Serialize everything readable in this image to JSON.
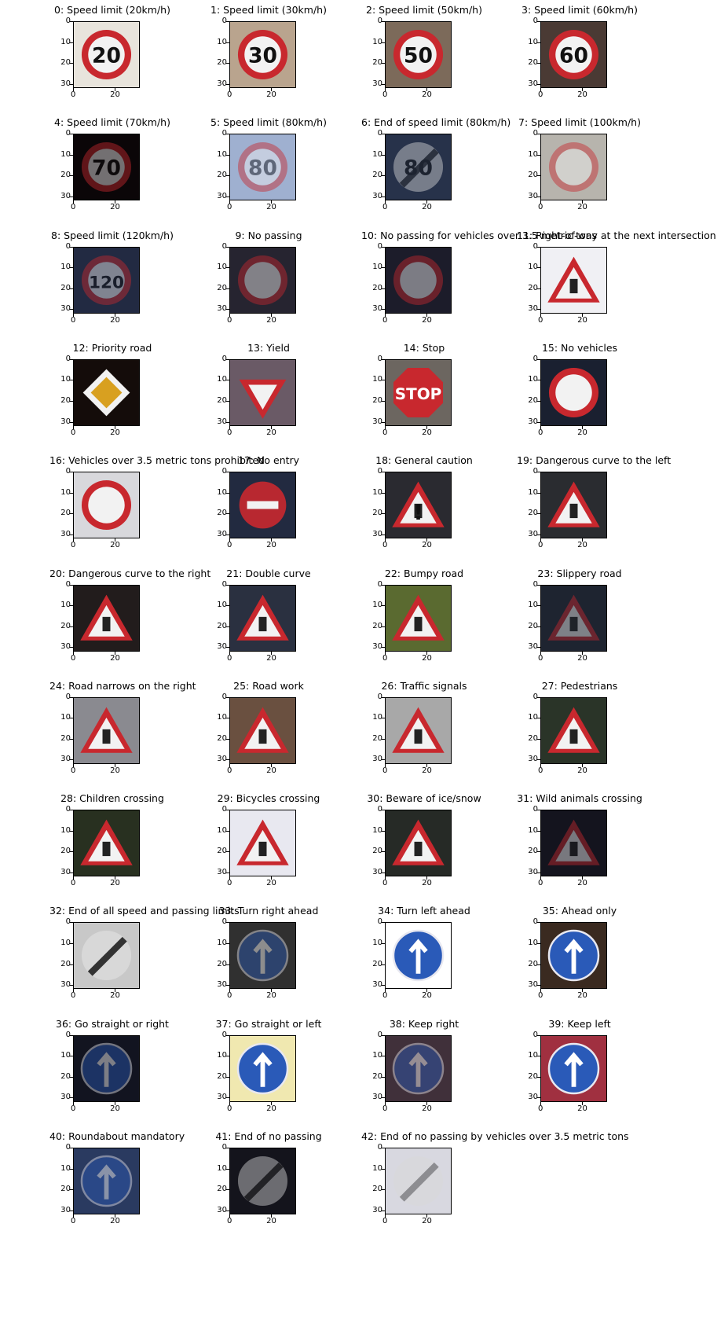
{
  "figure": {
    "panels": [
      {
        "title": "0: Speed limit (20km/h)",
        "sign": {
          "shape": "circle-red",
          "bg": "#e8e4dc",
          "label": "20",
          "dark": false
        }
      },
      {
        "title": "1: Speed limit (30km/h)",
        "sign": {
          "shape": "circle-red",
          "bg": "#b9a48e",
          "label": "30",
          "dark": false
        }
      },
      {
        "title": "2: Speed limit (50km/h)",
        "sign": {
          "shape": "circle-red",
          "bg": "#7c6a5a",
          "label": "50",
          "dark": false
        }
      },
      {
        "title": "3: Speed limit (60km/h)",
        "sign": {
          "shape": "circle-red",
          "bg": "#4a3a34",
          "label": "60",
          "dark": false
        }
      },
      {
        "title": "4: Speed limit (70km/h)",
        "sign": {
          "shape": "circle-red",
          "bg": "#0b0608",
          "label": "70",
          "dark": true
        }
      },
      {
        "title": "5: Speed limit (80km/h)",
        "sign": {
          "shape": "circle-red",
          "bg": "#9fb0d0",
          "label": "80",
          "dark": true
        }
      },
      {
        "title": "6: End of speed limit (80km/h)",
        "sign": {
          "shape": "circle-end",
          "bg": "#27324a",
          "label": "80",
          "dark": true
        }
      },
      {
        "title": "7: Speed limit (100km/h)",
        "sign": {
          "shape": "circle-red",
          "bg": "#b7b4ad",
          "label": "",
          "dark": true
        }
      },
      {
        "title": "8: Speed limit (120km/h)",
        "sign": {
          "shape": "circle-red",
          "bg": "#222a42",
          "label": "120",
          "dark": true
        }
      },
      {
        "title": "9: No passing",
        "sign": {
          "shape": "circle-red",
          "bg": "#262430",
          "label": "",
          "dark": true
        }
      },
      {
        "title": "10: No passing for vehicles over 3.5 metric tons",
        "sign": {
          "shape": "circle-red",
          "bg": "#1c1c2a",
          "label": "",
          "dark": true
        }
      },
      {
        "title": "11: Right-of-way at the next intersection",
        "sign": {
          "shape": "triangle",
          "bg": "#f0f0f4",
          "label": "",
          "dark": false
        }
      },
      {
        "title": "12: Priority road",
        "sign": {
          "shape": "diamond",
          "bg": "#140c0a",
          "label": "",
          "dark": false
        }
      },
      {
        "title": "13: Yield",
        "sign": {
          "shape": "yield",
          "bg": "#6a5a66",
          "label": "",
          "dark": false
        }
      },
      {
        "title": "14: Stop",
        "sign": {
          "shape": "stop",
          "bg": "#6c6660",
          "label": "STOP",
          "dark": false
        }
      },
      {
        "title": "15: No vehicles",
        "sign": {
          "shape": "circle-red",
          "bg": "#1a2030",
          "label": "",
          "dark": false
        }
      },
      {
        "title": "16: Vehicles over 3.5 metric tons prohibited",
        "sign": {
          "shape": "circle-red",
          "bg": "#d8d8dc",
          "label": "",
          "dark": false
        }
      },
      {
        "title": "17: No entry",
        "sign": {
          "shape": "noentry",
          "bg": "#222a40",
          "label": "",
          "dark": false
        }
      },
      {
        "title": "18: General caution",
        "sign": {
          "shape": "triangle",
          "bg": "#2a2a30",
          "label": "!",
          "dark": false
        }
      },
      {
        "title": "19: Dangerous curve to the left",
        "sign": {
          "shape": "triangle",
          "bg": "#2a2c30",
          "label": "",
          "dark": false
        }
      },
      {
        "title": "20: Dangerous curve to the right",
        "sign": {
          "shape": "triangle",
          "bg": "#221c1c",
          "label": "",
          "dark": false
        }
      },
      {
        "title": "21: Double curve",
        "sign": {
          "shape": "triangle",
          "bg": "#2a3040",
          "label": "",
          "dark": false
        }
      },
      {
        "title": "22: Bumpy road",
        "sign": {
          "shape": "triangle",
          "bg": "#5a6a30",
          "label": "",
          "dark": false
        }
      },
      {
        "title": "23: Slippery road",
        "sign": {
          "shape": "triangle",
          "bg": "#1e2430",
          "label": "",
          "dark": true
        }
      },
      {
        "title": "24: Road narrows on the right",
        "sign": {
          "shape": "triangle",
          "bg": "#8a8a90",
          "label": "",
          "dark": false
        }
      },
      {
        "title": "25: Road work",
        "sign": {
          "shape": "triangle",
          "bg": "#6a5040",
          "label": "",
          "dark": false
        }
      },
      {
        "title": "26: Traffic signals",
        "sign": {
          "shape": "triangle",
          "bg": "#a8a8a8",
          "label": "",
          "dark": false
        }
      },
      {
        "title": "27: Pedestrians",
        "sign": {
          "shape": "triangle",
          "bg": "#2a3428",
          "label": "",
          "dark": false
        }
      },
      {
        "title": "28: Children crossing",
        "sign": {
          "shape": "triangle",
          "bg": "#283020",
          "label": "",
          "dark": false
        }
      },
      {
        "title": "29: Bicycles crossing",
        "sign": {
          "shape": "triangle",
          "bg": "#e8e8f0",
          "label": "",
          "dark": false
        }
      },
      {
        "title": "30: Beware of ice/snow",
        "sign": {
          "shape": "triangle",
          "bg": "#262a26",
          "label": "",
          "dark": false
        }
      },
      {
        "title": "31: Wild animals crossing",
        "sign": {
          "shape": "triangle",
          "bg": "#14141e",
          "label": "",
          "dark": true
        }
      },
      {
        "title": "32: End of all speed and passing limits",
        "sign": {
          "shape": "circle-end",
          "bg": "#c8c8c8",
          "label": "",
          "dark": false
        }
      },
      {
        "title": "33: Turn right ahead",
        "sign": {
          "shape": "circle-blue",
          "bg": "#303030",
          "label": "",
          "dark": true
        }
      },
      {
        "title": "34: Turn left ahead",
        "sign": {
          "shape": "circle-blue",
          "bg": "#ffffff",
          "label": "",
          "dark": false
        }
      },
      {
        "title": "35: Ahead only",
        "sign": {
          "shape": "circle-blue",
          "bg": "#3a2a20",
          "label": "",
          "dark": false
        }
      },
      {
        "title": "36: Go straight or right",
        "sign": {
          "shape": "circle-blue",
          "bg": "#121420",
          "label": "",
          "dark": true
        }
      },
      {
        "title": "37: Go straight or left",
        "sign": {
          "shape": "circle-blue",
          "bg": "#f0e8b0",
          "label": "",
          "dark": false
        }
      },
      {
        "title": "38: Keep right",
        "sign": {
          "shape": "circle-blue",
          "bg": "#40303a",
          "label": "",
          "dark": true
        }
      },
      {
        "title": "39: Keep left",
        "sign": {
          "shape": "circle-blue",
          "bg": "#a03040",
          "label": "",
          "dark": false
        }
      },
      {
        "title": "40: Roundabout mandatory",
        "sign": {
          "shape": "circle-blue",
          "bg": "#2a3a60",
          "label": "",
          "dark": true
        }
      },
      {
        "title": "41: End of no passing",
        "sign": {
          "shape": "circle-end",
          "bg": "#14141c",
          "label": "",
          "dark": true
        }
      },
      {
        "title": "42: End of no passing by vehicles over 3.5 metric tons",
        "sign": {
          "shape": "circle-end",
          "bg": "#d8d8e0",
          "label": "",
          "dark": true
        }
      }
    ]
  },
  "chart_data": {
    "type": "image-grid",
    "title": "",
    "xticks": [
      "0",
      "20"
    ],
    "yticks": [
      "0",
      "10",
      "20",
      "30"
    ],
    "xlim": [
      0,
      32
    ],
    "ylim": [
      32,
      0
    ],
    "grid": false,
    "categories": [
      "0: Speed limit (20km/h)",
      "1: Speed limit (30km/h)",
      "2: Speed limit (50km/h)",
      "3: Speed limit (60km/h)",
      "4: Speed limit (70km/h)",
      "5: Speed limit (80km/h)",
      "6: End of speed limit (80km/h)",
      "7: Speed limit (100km/h)",
      "8: Speed limit (120km/h)",
      "9: No passing",
      "10: No passing for vehicles over 3.5 metric tons",
      "11: Right-of-way at the next intersection",
      "12: Priority road",
      "13: Yield",
      "14: Stop",
      "15: No vehicles",
      "16: Vehicles over 3.5 metric tons prohibited",
      "17: No entry",
      "18: General caution",
      "19: Dangerous curve to the left",
      "20: Dangerous curve to the right",
      "21: Double curve",
      "22: Bumpy road",
      "23: Slippery road",
      "24: Road narrows on the right",
      "25: Road work",
      "26: Traffic signals",
      "27: Pedestrians",
      "28: Children crossing",
      "29: Bicycles crossing",
      "30: Beware of ice/snow",
      "31: Wild animals crossing",
      "32: End of all speed and passing limits",
      "33: Turn right ahead",
      "34: Turn left ahead",
      "35: Ahead only",
      "36: Go straight or right",
      "37: Go straight or left",
      "38: Keep right",
      "39: Keep left",
      "40: Roundabout mandatory",
      "41: End of no passing",
      "42: End of no passing by vehicles over 3.5 metric tons"
    ]
  }
}
